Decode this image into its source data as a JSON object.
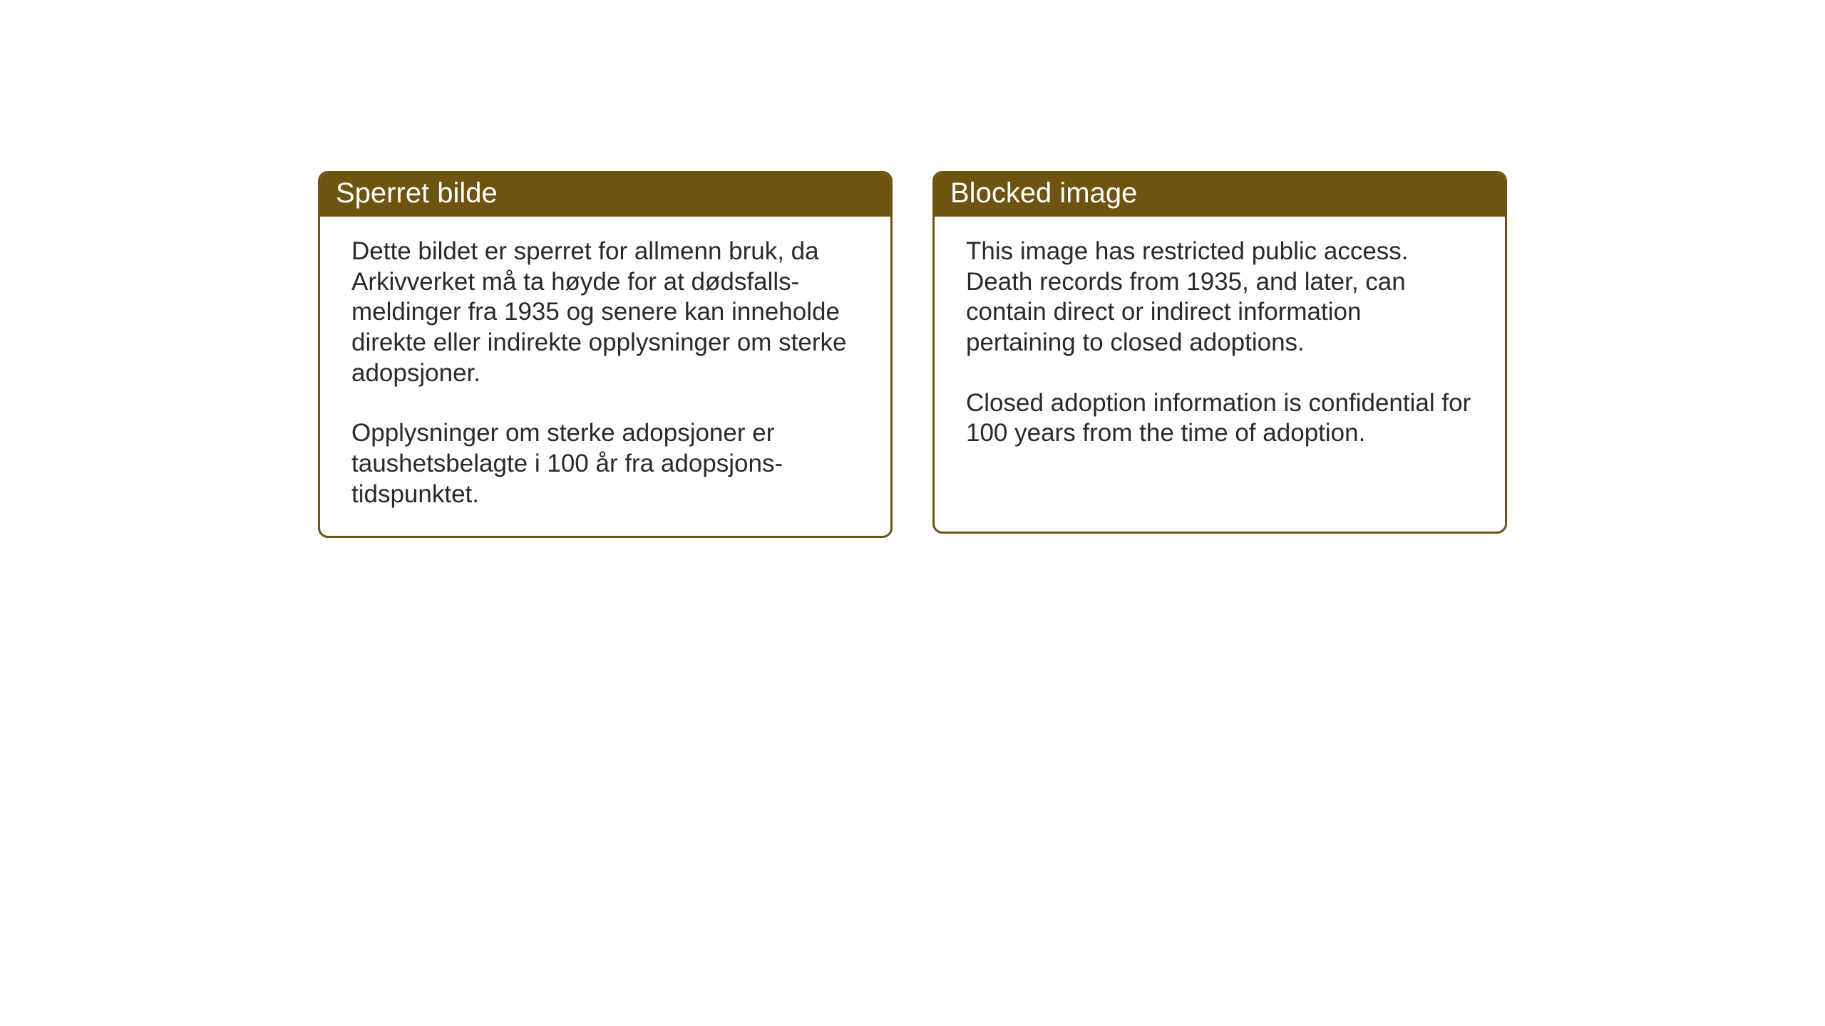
{
  "cards": {
    "left": {
      "title": "Sperret bilde",
      "paragraph1": "Dette bildet er sperret for allmenn bruk, da Arkivverket må ta høyde for at dødsfalls-meldinger fra 1935 og senere kan inneholde direkte eller indirekte opplysninger om sterke adopsjoner.",
      "paragraph2": "Opplysninger om sterke adopsjoner er taushetsbelagte i 100 år fra adopsjons-tidspunktet."
    },
    "right": {
      "title": "Blocked image",
      "paragraph1": "This image has restricted public access. Death records from 1935, and later, can contain direct or indirect information pertaining to closed adoptions.",
      "paragraph2": "Closed adoption information is confidential for 100 years from the time of adoption."
    }
  },
  "style": {
    "header_bg_color": "#6e5410",
    "header_text_color": "#ffffff",
    "border_color": "#6e5410",
    "body_text_color": "#2a2a2a",
    "body_bg_color": "#ffffff",
    "page_bg_color": "#ffffff",
    "border_radius": 14,
    "header_fontsize": 40,
    "body_fontsize": 35
  }
}
